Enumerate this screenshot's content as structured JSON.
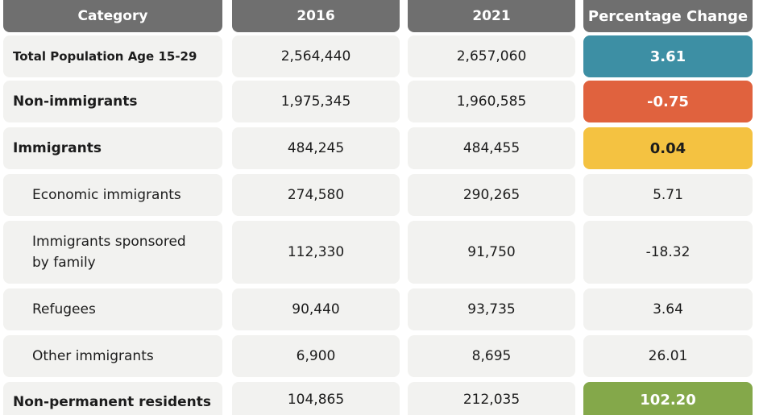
{
  "header": {
    "category": "Category",
    "y2016": "2016",
    "y2021": "2021",
    "pct": "Percentage Change"
  },
  "rows": [
    {
      "label": "Total Population Age 15-29",
      "v2016": "2,564,440",
      "v2021": "2,657,060",
      "pct": "3.61",
      "pct_color": "#3d8fa4"
    },
    {
      "label": "Non-immigrants",
      "v2016": "1,975,345",
      "v2021": "1,960,585",
      "pct": "-0.75",
      "pct_color": "#e0623e"
    },
    {
      "label": "Immigrants",
      "v2016": "484,245",
      "v2021": "484,455",
      "pct": "0.04",
      "pct_color": "#f4c241"
    },
    {
      "label": "Economic immigrants",
      "v2016": "274,580",
      "v2021": "290,265",
      "pct": "5.71"
    },
    {
      "label": "Immigrants sponsored by family",
      "v2016": "112,330",
      "v2021": "91,750",
      "pct": "-18.32"
    },
    {
      "label": "Refugees",
      "v2016": "90,440",
      "v2021": "93,735",
      "pct": "3.64"
    },
    {
      "label": "Other immigrants",
      "v2016": "6,900",
      "v2021": "8,695",
      "pct": "26.01"
    },
    {
      "label": "Non-permanent residents",
      "v2016": "104,865",
      "v2021": "212,035",
      "pct": "102.20",
      "pct_color": "#84a84a"
    }
  ]
}
